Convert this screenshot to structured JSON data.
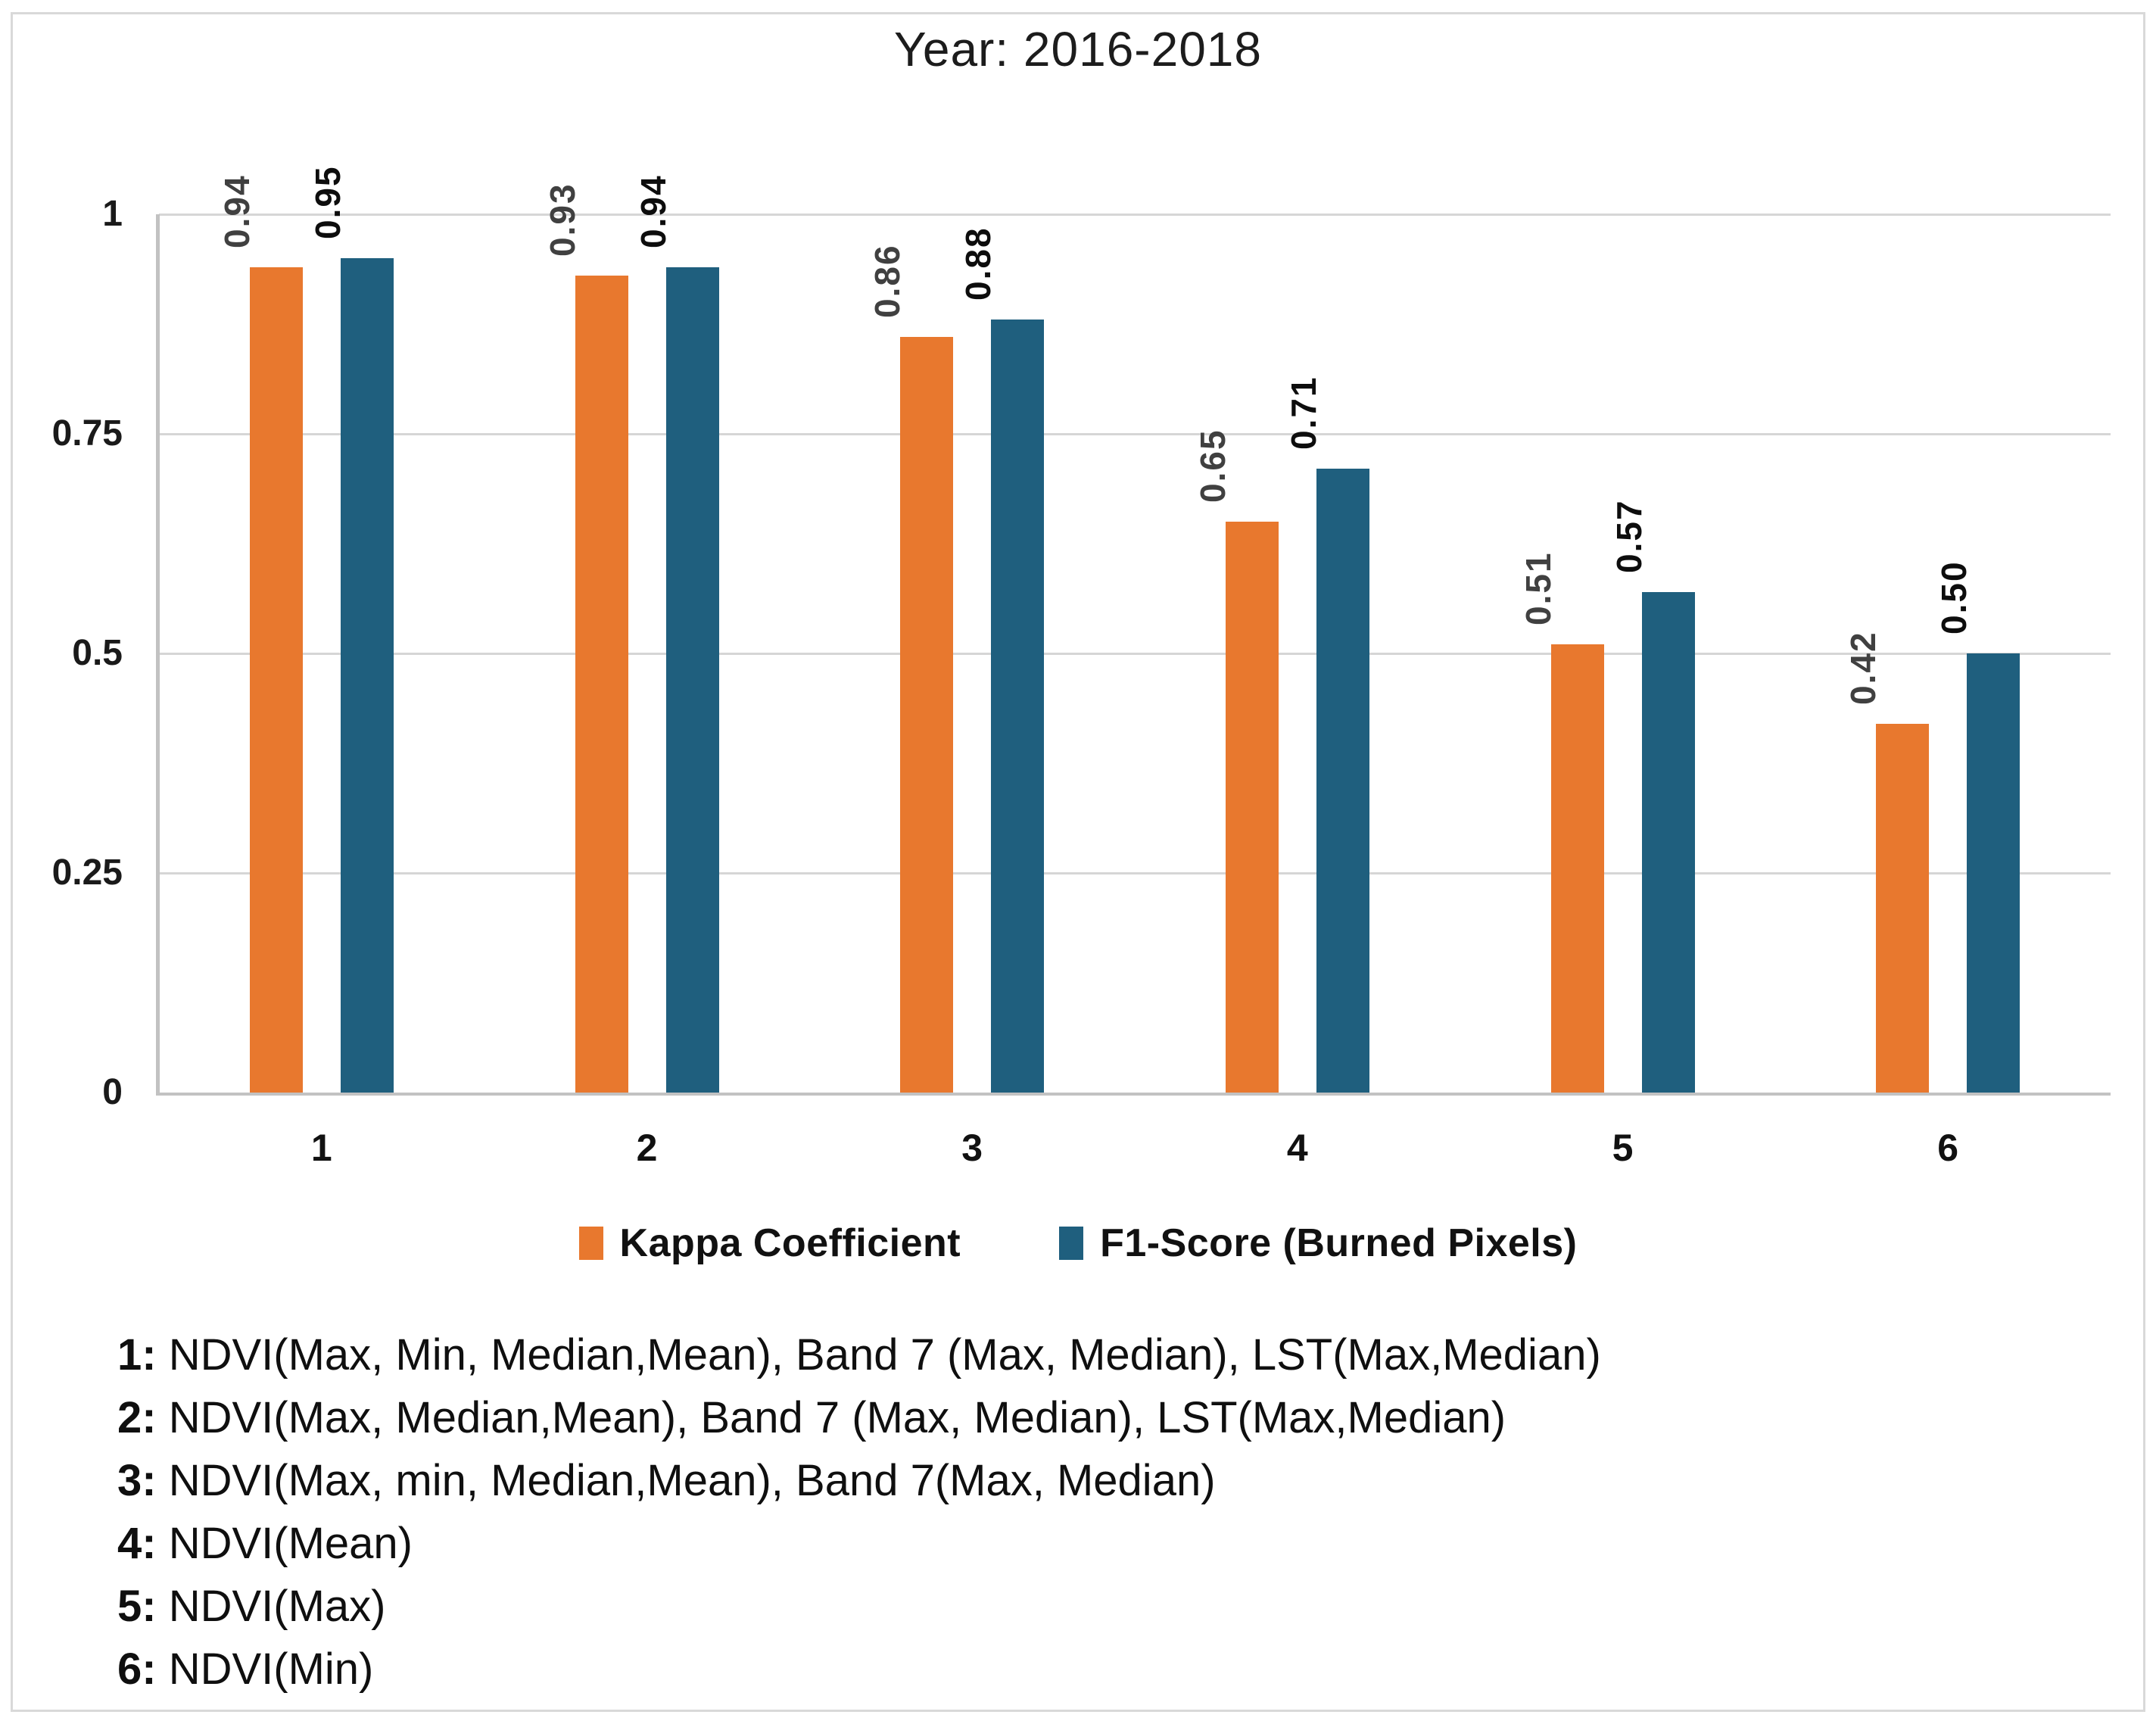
{
  "title": "Year: 2016-2018",
  "chart_data": {
    "type": "bar",
    "title": "Year: 2016-2018",
    "categories": [
      "1",
      "2",
      "3",
      "4",
      "5",
      "6"
    ],
    "series": [
      {
        "name": "Kappa Coefficient",
        "color": "#e8782e",
        "label_color": "#404040",
        "values": [
          0.94,
          0.93,
          0.86,
          0.65,
          0.51,
          0.42
        ],
        "labels": [
          "0.94",
          "0.93",
          "0.86",
          "0.65",
          "0.51",
          "0.42"
        ]
      },
      {
        "name": "F1-Score (Burned Pixels)",
        "color": "#1f5f7e",
        "label_color": "#0d0d0d",
        "values": [
          0.95,
          0.94,
          0.88,
          0.71,
          0.57,
          0.5
        ],
        "labels": [
          "0.95",
          "0.94",
          "0.88",
          "0.71",
          "0.57",
          "0.50"
        ]
      }
    ],
    "ylim": [
      0,
      1
    ],
    "yticks": [
      {
        "value": 0,
        "label": "0"
      },
      {
        "value": 0.25,
        "label": "0.25"
      },
      {
        "value": 0.5,
        "label": "0.5"
      },
      {
        "value": 0.75,
        "label": "0.75"
      },
      {
        "value": 1,
        "label": "1"
      }
    ],
    "grid": true,
    "legend_position": "bottom"
  },
  "footnotes": [
    {
      "num": "1:",
      "text": " NDVI(Max, Min, Median,Mean), Band 7 (Max, Median), LST(Max,Median)"
    },
    {
      "num": "2:",
      "text": " NDVI(Max, Median,Mean), Band 7 (Max, Median), LST(Max,Median)"
    },
    {
      "num": "3:",
      "text": " NDVI(Max, min, Median,Mean), Band 7(Max, Median)"
    },
    {
      "num": "4:",
      "text": " NDVI(Mean)"
    },
    {
      "num": "5:",
      "text": " NDVI(Max)"
    },
    {
      "num": "6:",
      "text": " NDVI(Min)"
    }
  ],
  "colors": {
    "gridline": "#d6d6d6",
    "axis": "#c2c2c2",
    "frame_border": "#d9d9d9",
    "background": "#ffffff"
  }
}
